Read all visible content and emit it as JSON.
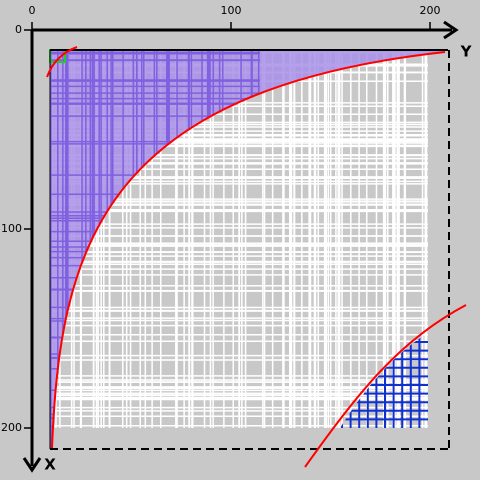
{
  "axes": {
    "top": {
      "ticks": [
        0,
        100,
        200
      ],
      "label": "Y"
    },
    "left": {
      "ticks": [
        0,
        100,
        200
      ],
      "label": "X"
    }
  }
}
